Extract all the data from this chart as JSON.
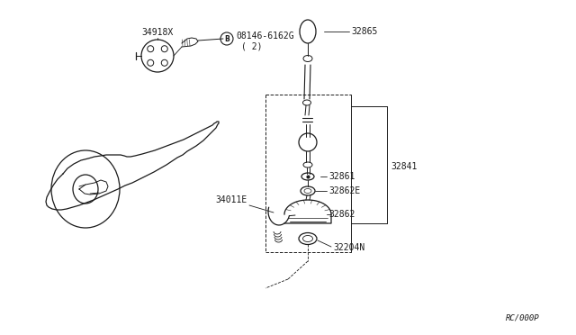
{
  "bg_color": "#ffffff",
  "line_color": "#1a1a1a",
  "fig_width": 6.4,
  "fig_height": 3.72,
  "dpi": 100,
  "watermark": "RC/000P",
  "parts": {
    "34918X": "34918X",
    "bolt_label": "08146-6162G",
    "bolt_label2": "( 2)",
    "32865": "32865",
    "32841": "32841",
    "32861": "32861",
    "32862E": "32862E",
    "32862": "32862",
    "32204N": "32204N",
    "34011E": "34011E"
  }
}
